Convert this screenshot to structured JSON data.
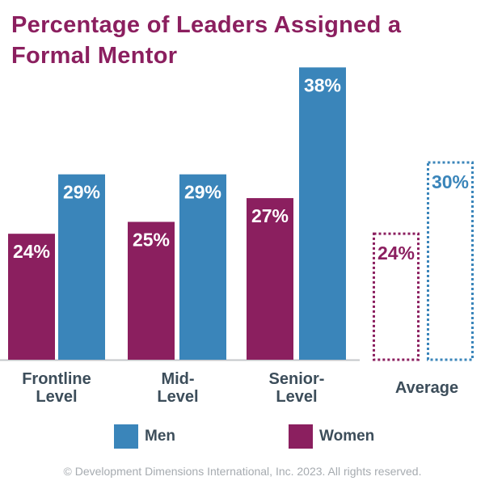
{
  "chart_data": {
    "type": "bar",
    "title": "Percentage of Leaders Assigned a Formal Mentor",
    "categories": [
      "Frontline Level",
      "Mid-Level",
      "Senior-Level",
      "Average"
    ],
    "category_lines": [
      [
        "Frontline",
        "Level"
      ],
      [
        "Mid-",
        "Level"
      ],
      [
        "Senior-",
        "Level"
      ],
      [
        "Average"
      ]
    ],
    "series": [
      {
        "name": "Women",
        "values": [
          24,
          25,
          27,
          24
        ],
        "labels": [
          "24%",
          "25%",
          "27%",
          "24%"
        ],
        "color": "#8b1f5f"
      },
      {
        "name": "Men",
        "values": [
          29,
          29,
          38,
          30
        ],
        "labels": [
          "29%",
          "29%",
          "38%",
          "30%"
        ],
        "color": "#3a85ba"
      }
    ],
    "average_style": "dotted outline",
    "legend": {
      "placement": "bottom",
      "items": [
        "Men",
        "Women"
      ]
    },
    "grid": false,
    "ylabel": "",
    "xlabel": ""
  },
  "footer": {
    "copyright": "© Development Dimensions International, Inc. 2023. All rights reserved."
  }
}
